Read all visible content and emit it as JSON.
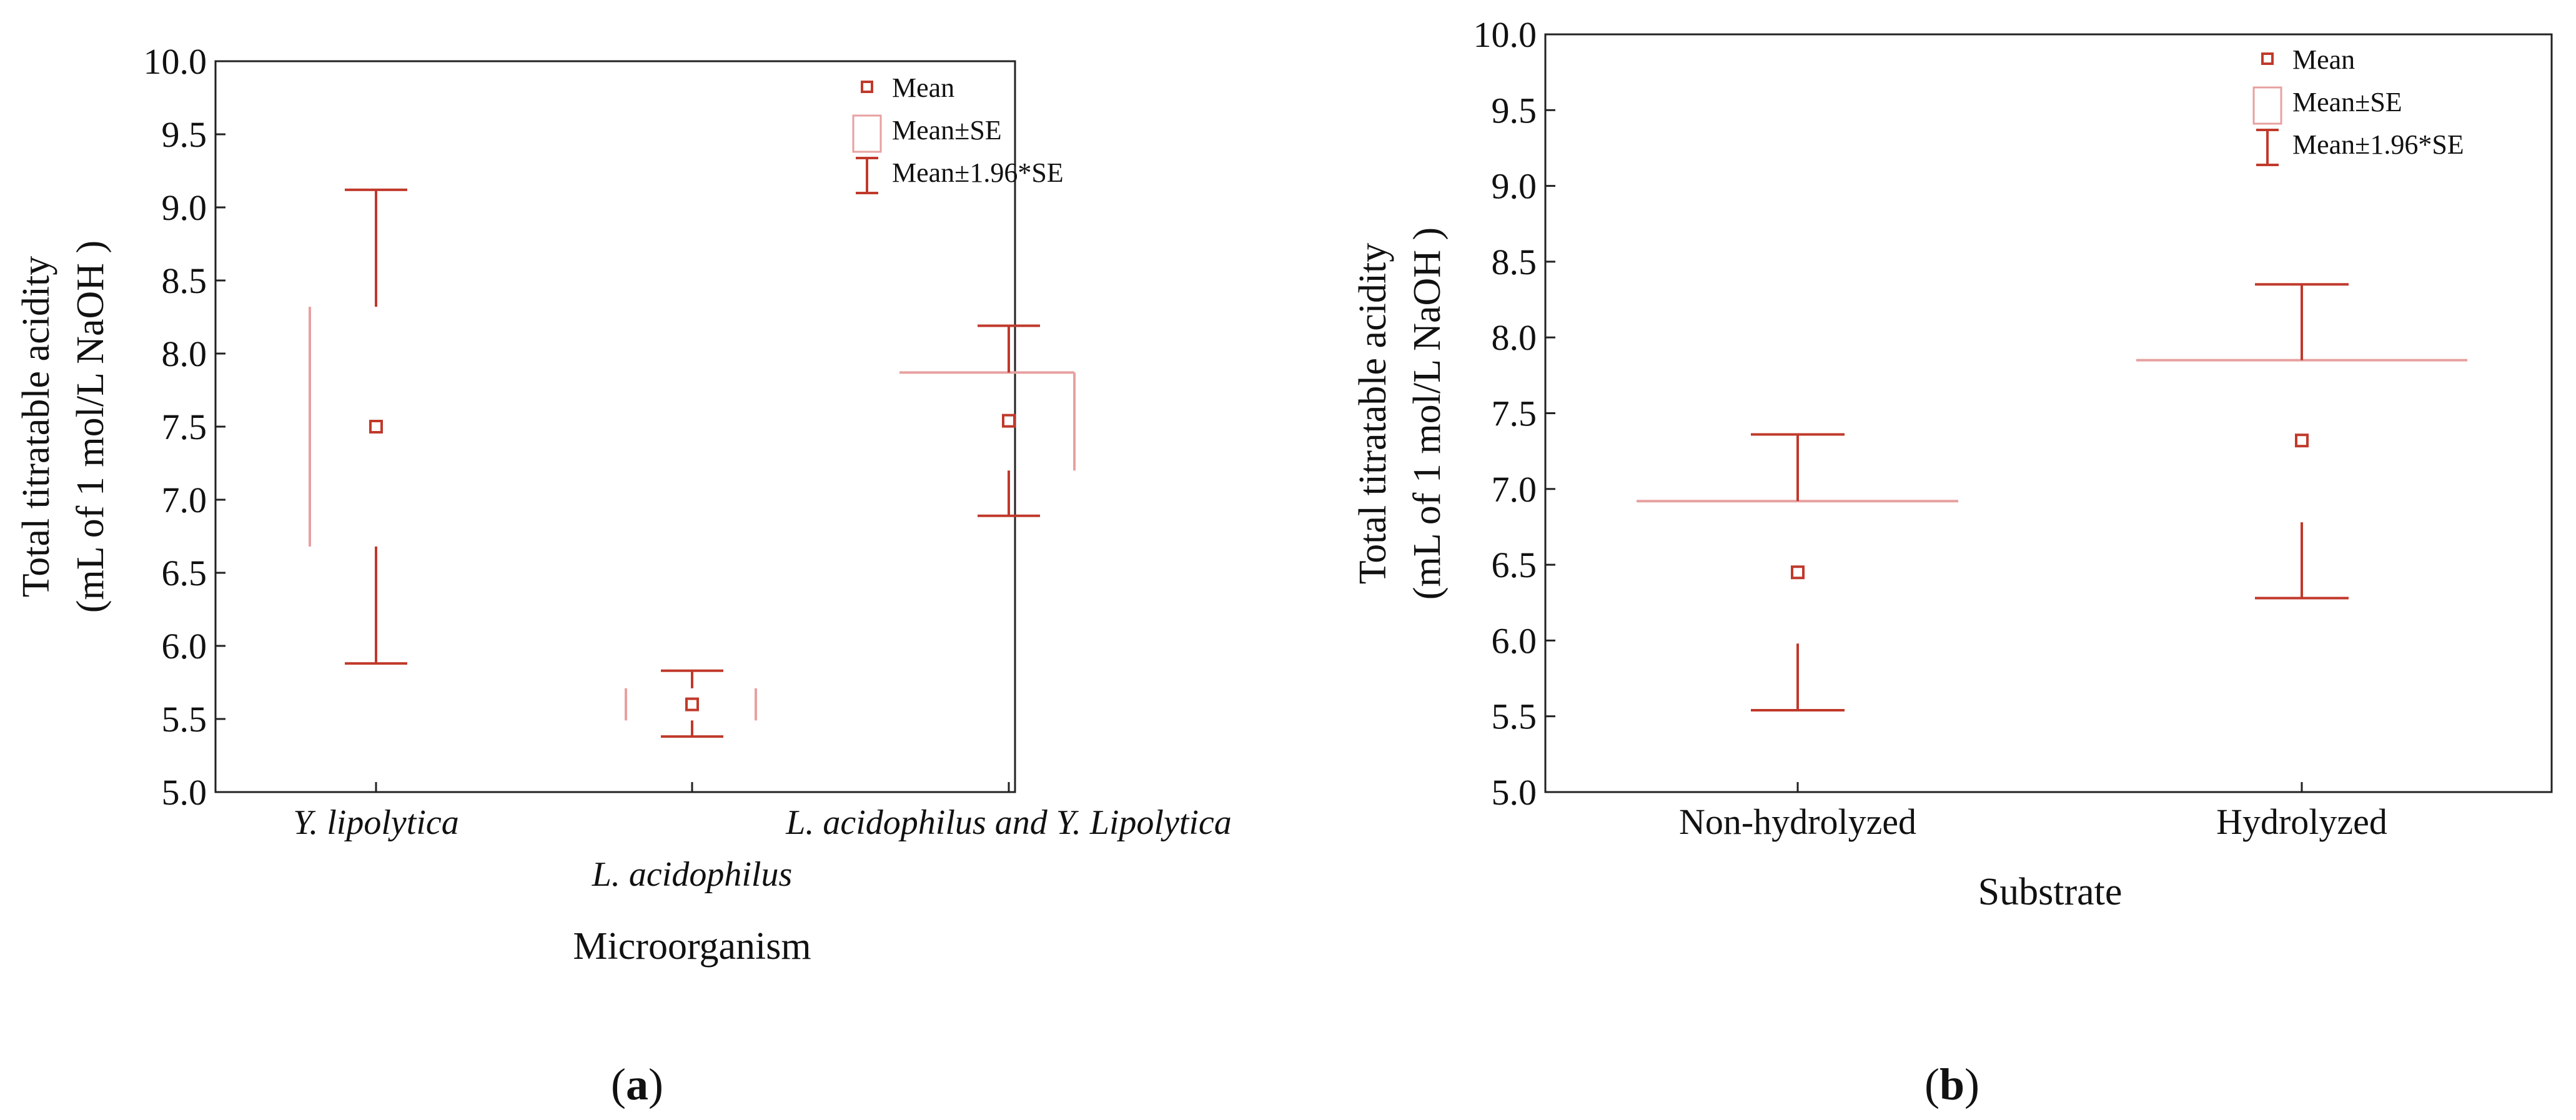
{
  "chart_data": [
    {
      "id": "a",
      "type": "box-whisker",
      "panel_label": "a",
      "title": "",
      "xlabel": "Microorganism",
      "ylabel_line1": "Total titratable acidity",
      "ylabel_line2": "(mL of 1 mol/L NaOH )",
      "ylim": [
        5.0,
        10.0
      ],
      "yticks": [
        "5.0",
        "5.5",
        "6.0",
        "6.5",
        "7.0",
        "7.5",
        "8.0",
        "8.5",
        "9.0",
        "9.5",
        "10.0"
      ],
      "categories": [
        "Y. lipolytica",
        "L. acidophilus",
        "L. acidophilus and Y. Lipolytica"
      ],
      "mean": [
        7.5,
        5.6,
        7.54
      ],
      "se_low": [
        6.68,
        5.49,
        7.2
      ],
      "se_high": [
        8.32,
        5.71,
        7.87
      ],
      "ci_low": [
        5.88,
        5.38,
        6.89
      ],
      "ci_high": [
        9.12,
        5.83,
        8.19
      ],
      "legend": [
        "Mean",
        "Mean±SE",
        "Mean±1.96*SE"
      ],
      "colors": {
        "mean": "#c0392b",
        "se": "#e8a0a0",
        "ci": "#c0392b"
      }
    },
    {
      "id": "b",
      "type": "box-whisker",
      "panel_label": "b",
      "title": "",
      "xlabel": "Substrate",
      "ylabel_line1": "Total titratable acidity",
      "ylabel_line2": "(mL of 1 mol/L NaOH )",
      "ylim": [
        5.0,
        10.0
      ],
      "yticks": [
        "5.0",
        "5.5",
        "6.0",
        "6.5",
        "7.0",
        "7.5",
        "8.0",
        "8.5",
        "9.0",
        "9.5",
        "10.0"
      ],
      "categories": [
        "Non-hydrolyzed",
        "Hydrolyzed"
      ],
      "mean": [
        6.45,
        7.32
      ],
      "se_low": [
        5.98,
        6.78
      ],
      "se_high": [
        6.92,
        7.85
      ],
      "ci_low": [
        5.54,
        6.28
      ],
      "ci_high": [
        7.36,
        8.35
      ],
      "legend": [
        "Mean",
        "Mean±SE",
        "Mean±1.96*SE"
      ],
      "colors": {
        "mean": "#c0392b",
        "se": "#e8a0a0",
        "ci": "#c0392b"
      }
    }
  ]
}
